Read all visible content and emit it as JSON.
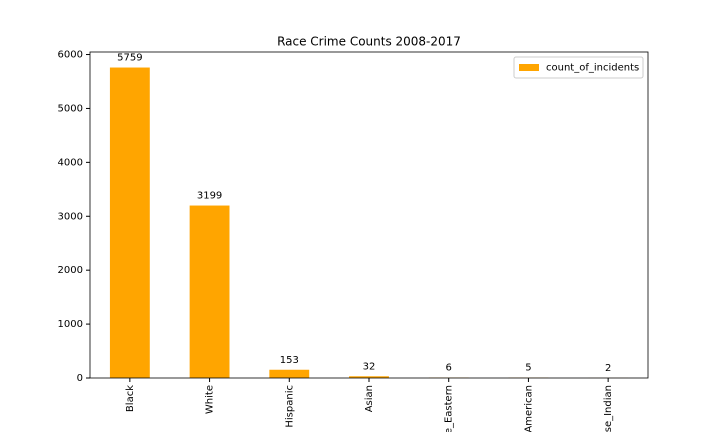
{
  "chart_data": {
    "type": "bar",
    "title": "Race Crime Counts 2008-2017",
    "categories": [
      "Black",
      "White",
      "Hispanic",
      "Asian",
      "e_Eastern",
      "American",
      "se_Indian"
    ],
    "series": [
      {
        "name": "count_of_incidents",
        "color": "#ffa500",
        "values": [
          5759,
          3199,
          153,
          32,
          6,
          5,
          2
        ]
      }
    ],
    "ylim": [
      0,
      6047
    ],
    "yticks": [
      0,
      1000,
      2000,
      3000,
      4000,
      5000,
      6000
    ],
    "grid": false,
    "legend": "upper right"
  }
}
